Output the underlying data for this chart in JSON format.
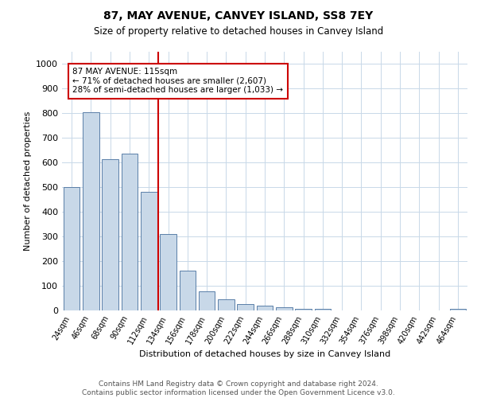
{
  "title": "87, MAY AVENUE, CANVEY ISLAND, SS8 7EY",
  "subtitle": "Size of property relative to detached houses in Canvey Island",
  "xlabel": "Distribution of detached houses by size in Canvey Island",
  "ylabel": "Number of detached properties",
  "footer_line1": "Contains HM Land Registry data © Crown copyright and database right 2024.",
  "footer_line2": "Contains public sector information licensed under the Open Government Licence v3.0.",
  "bar_labels": [
    "24sqm",
    "46sqm",
    "68sqm",
    "90sqm",
    "112sqm",
    "134sqm",
    "156sqm",
    "178sqm",
    "200sqm",
    "222sqm",
    "244sqm",
    "266sqm",
    "288sqm",
    "310sqm",
    "332sqm",
    "354sqm",
    "376sqm",
    "398sqm",
    "420sqm",
    "442sqm",
    "464sqm"
  ],
  "bar_values": [
    500,
    805,
    615,
    635,
    480,
    310,
    160,
    78,
    45,
    25,
    20,
    12,
    8,
    5,
    0,
    0,
    0,
    0,
    0,
    0,
    8
  ],
  "bar_color": "#c8d8e8",
  "bar_edge_color": "#5a7fa8",
  "vline_x": 4.5,
  "vline_color": "#cc0000",
  "annotation_text": "87 MAY AVENUE: 115sqm\n← 71% of detached houses are smaller (2,607)\n28% of semi-detached houses are larger (1,033) →",
  "annotation_box_color": "#ffffff",
  "annotation_box_edge": "#cc0000",
  "ylim": [
    0,
    1050
  ],
  "yticks": [
    0,
    100,
    200,
    300,
    400,
    500,
    600,
    700,
    800,
    900,
    1000
  ],
  "grid_color": "#c8d8e8",
  "background_color": "#ffffff",
  "title_fontsize": 10,
  "subtitle_fontsize": 8.5,
  "footer_fontsize": 6.5,
  "ylabel_fontsize": 8,
  "xlabel_fontsize": 8,
  "tick_fontsize": 7
}
